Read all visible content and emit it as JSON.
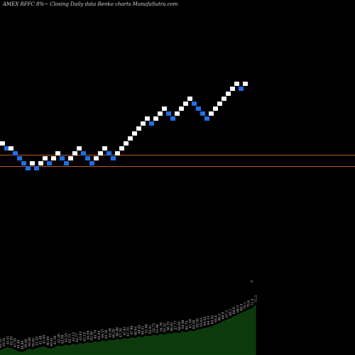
{
  "header": {
    "title": "AMEX  RFFC 8%~  Closing Daily data  Renko  charts MunafaSutra.com"
  },
  "colors": {
    "background": "#000000",
    "up_brick": "#ffffff",
    "down_brick": "#1f6fe6",
    "reference_line": "#b85a2a",
    "volume_fill": "#0c3a0c",
    "volume_line": "#0f4a0f",
    "label_text": "#cfcfcf"
  },
  "chart_data": [
    {
      "type": "renko",
      "title": "AMEX  RFFC 8%~  Closing Daily data  Renko  charts MunafaSutra.com",
      "xlabel": "",
      "ylabel": "",
      "ylim": [
        0,
        28
      ],
      "reference_lines": [
        3.0,
        1.0
      ],
      "bricks": [
        {
          "level": 5,
          "dir": "up"
        },
        {
          "level": 4,
          "dir": "down"
        },
        {
          "level": 4,
          "dir": "up"
        },
        {
          "level": 3,
          "dir": "down"
        },
        {
          "level": 2,
          "dir": "down"
        },
        {
          "level": 1,
          "dir": "down"
        },
        {
          "level": 0,
          "dir": "down"
        },
        {
          "level": 1,
          "dir": "up"
        },
        {
          "level": 0,
          "dir": "down"
        },
        {
          "level": 1,
          "dir": "up"
        },
        {
          "level": 2,
          "dir": "up"
        },
        {
          "level": 1,
          "dir": "down"
        },
        {
          "level": 2,
          "dir": "up"
        },
        {
          "level": 3,
          "dir": "up"
        },
        {
          "level": 2,
          "dir": "down"
        },
        {
          "level": 1,
          "dir": "down"
        },
        {
          "level": 2,
          "dir": "up"
        },
        {
          "level": 3,
          "dir": "up"
        },
        {
          "level": 4,
          "dir": "up"
        },
        {
          "level": 3,
          "dir": "down"
        },
        {
          "level": 2,
          "dir": "down"
        },
        {
          "level": 1,
          "dir": "down"
        },
        {
          "level": 2,
          "dir": "up"
        },
        {
          "level": 3,
          "dir": "up"
        },
        {
          "level": 4,
          "dir": "up"
        },
        {
          "level": 3,
          "dir": "down"
        },
        {
          "level": 2,
          "dir": "down"
        },
        {
          "level": 3,
          "dir": "up"
        },
        {
          "level": 4,
          "dir": "up"
        },
        {
          "level": 5,
          "dir": "up"
        },
        {
          "level": 6,
          "dir": "up"
        },
        {
          "level": 7,
          "dir": "up"
        },
        {
          "level": 8,
          "dir": "up"
        },
        {
          "level": 9,
          "dir": "up"
        },
        {
          "level": 10,
          "dir": "up"
        },
        {
          "level": 9,
          "dir": "down"
        },
        {
          "level": 10,
          "dir": "up"
        },
        {
          "level": 11,
          "dir": "up"
        },
        {
          "level": 12,
          "dir": "up"
        },
        {
          "level": 11,
          "dir": "down"
        },
        {
          "level": 10,
          "dir": "down"
        },
        {
          "level": 11,
          "dir": "up"
        },
        {
          "level": 12,
          "dir": "up"
        },
        {
          "level": 13,
          "dir": "up"
        },
        {
          "level": 14,
          "dir": "up"
        },
        {
          "level": 13,
          "dir": "down"
        },
        {
          "level": 12,
          "dir": "down"
        },
        {
          "level": 11,
          "dir": "down"
        },
        {
          "level": 10,
          "dir": "down"
        },
        {
          "level": 11,
          "dir": "up"
        },
        {
          "level": 12,
          "dir": "up"
        },
        {
          "level": 13,
          "dir": "up"
        },
        {
          "level": 14,
          "dir": "up"
        },
        {
          "level": 15,
          "dir": "up"
        },
        {
          "level": 16,
          "dir": "up"
        },
        {
          "level": 17,
          "dir": "up"
        },
        {
          "level": 16,
          "dir": "down"
        },
        {
          "level": 17,
          "dir": "up"
        }
      ],
      "volume": [
        5,
        7,
        9,
        8,
        6,
        4,
        3,
        5,
        7,
        6,
        8,
        9,
        10,
        8,
        7,
        9,
        11,
        10,
        12,
        11,
        13,
        12,
        14,
        13,
        15,
        14,
        16,
        15,
        17,
        16,
        18,
        17,
        19,
        18,
        20,
        19,
        21,
        20,
        22,
        21,
        23,
        22,
        24,
        23,
        25,
        24,
        26,
        25,
        27,
        26,
        28,
        27,
        29,
        28,
        30,
        31,
        32,
        33,
        34,
        36,
        38,
        40,
        42,
        44,
        46,
        48,
        50,
        52,
        54,
        56,
        60
      ],
      "volume_labels": [
        "42.19",
        "42.81",
        "43.01",
        "42.20",
        "41.35",
        "39.49",
        "38.80",
        "39.46",
        "40.60",
        "39.95",
        "41.22",
        "41.48",
        "41.85",
        "40.94",
        "40.61",
        "41.30",
        "42.29",
        "42.09",
        "42.53",
        "42.13",
        "43.12",
        "42.77",
        "43.63",
        "43.19",
        "44.00",
        "43.56",
        "44.74",
        "45.04",
        "44.37",
        "45.30",
        "45.58",
        "46.29",
        "46.88",
        "47.30",
        "47.61",
        "47.70",
        "47.96",
        "48.64",
        "49.42",
        "50.51",
        "51.66",
        "52.41",
        "52.73",
        "53.86",
        "54.76",
        "55.22",
        "56.33",
        "56.95",
        "57.77",
        "58.00",
        "59.48",
        "60.74",
        "61.59",
        "62.00",
        "62.95",
        "63.61",
        "64.02",
        "64.33",
        "64.81",
        "65.4",
        "66.2",
        "66.9",
        "67.5",
        "68.1",
        "68.6",
        "69.0",
        "69.5",
        "70.1",
        "70.6",
        "71.0",
        "71.3"
      ],
      "grid": false
    }
  ]
}
